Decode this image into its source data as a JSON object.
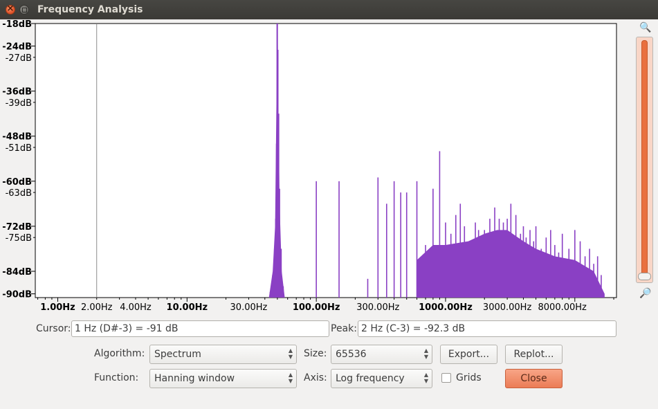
{
  "window": {
    "title": "Frequency Analysis"
  },
  "chart_data": {
    "type": "bar",
    "x_scale": "log",
    "xlim": [
      0.67,
      21000
    ],
    "ylim": [
      -91,
      -18
    ],
    "y_major_ticks": [
      "-18dB",
      "-24dB",
      "-36dB",
      "-48dB",
      "-60dB",
      "-72dB",
      "-84dB",
      "-90dB"
    ],
    "y_minor_ticks": [
      "-27dB",
      "-39dB",
      "-51dB",
      "-63dB",
      "-75dB"
    ],
    "x_ticks": [
      {
        "label": "1.00Hz",
        "value": 1,
        "major": true
      },
      {
        "label": "2.00Hz",
        "value": 2,
        "major": false
      },
      {
        "label": "4.00Hz",
        "value": 4,
        "major": false
      },
      {
        "label": "10.00Hz",
        "value": 10,
        "major": true
      },
      {
        "label": "30.00Hz",
        "value": 30,
        "major": false
      },
      {
        "label": "100.00Hz",
        "value": 100,
        "major": true
      },
      {
        "label": "300.00Hz",
        "value": 300,
        "major": false
      },
      {
        "label": "1000.00Hz",
        "value": 1000,
        "major": true
      },
      {
        "label": "3000.00Hz",
        "value": 3000,
        "major": false
      },
      {
        "label": "8000.00Hz",
        "value": 8000,
        "major": false
      }
    ],
    "cursor_line_hz": 2,
    "series": [
      {
        "color": "#8a40c4",
        "points": [
          [
            44.0,
            -89.5
          ],
          [
            46.0,
            -85
          ],
          [
            47.5,
            -78
          ],
          [
            48.5,
            -70
          ],
          [
            49.2,
            -50
          ],
          [
            49.7,
            -18
          ],
          [
            50.0,
            -18
          ],
          [
            50.5,
            -25
          ],
          [
            51.2,
            -42
          ],
          [
            52.0,
            -62
          ],
          [
            53.5,
            -78
          ],
          [
            55.5,
            -88
          ],
          [
            100,
            -60
          ],
          [
            150,
            -60
          ],
          [
            250,
            -86
          ],
          [
            300,
            -59
          ],
          [
            350,
            -66
          ],
          [
            400,
            -60
          ],
          [
            450,
            -63
          ],
          [
            500,
            -63
          ],
          [
            600,
            -60
          ],
          [
            700,
            -77
          ],
          [
            800,
            -62
          ],
          [
            900,
            -52
          ],
          [
            1000,
            -71
          ],
          [
            1100,
            -74
          ],
          [
            1200,
            -69
          ],
          [
            1300,
            -66
          ],
          [
            1400,
            -72
          ],
          [
            1500,
            -78
          ],
          [
            1600,
            -76
          ],
          [
            1700,
            -71
          ],
          [
            1800,
            -73
          ],
          [
            1900,
            -76
          ],
          [
            2000,
            -73
          ],
          [
            2200,
            -70
          ],
          [
            2400,
            -67
          ],
          [
            2600,
            -70
          ],
          [
            2800,
            -71
          ],
          [
            3000,
            -70
          ],
          [
            3200,
            -66
          ],
          [
            3500,
            -69
          ],
          [
            3800,
            -74
          ],
          [
            4000,
            -72
          ],
          [
            4200,
            -75
          ],
          [
            4500,
            -73
          ],
          [
            4800,
            -76
          ],
          [
            5000,
            -72
          ],
          [
            5500,
            -78
          ],
          [
            6000,
            -75
          ],
          [
            6500,
            -73
          ],
          [
            7000,
            -77
          ],
          [
            7500,
            -79
          ],
          [
            8000,
            -74
          ],
          [
            9000,
            -78
          ],
          [
            10000,
            -73
          ],
          [
            11000,
            -76
          ],
          [
            12000,
            -80
          ],
          [
            13000,
            -78
          ],
          [
            14000,
            -82
          ],
          [
            15000,
            -80
          ],
          [
            16000,
            -85
          ]
        ]
      }
    ]
  },
  "cursor": {
    "label": "Cursor:",
    "value": "1 Hz (D#-3) = -91 dB"
  },
  "peak": {
    "label": "Peak:",
    "value": "2 Hz (C-3) = -92.3 dB"
  },
  "algorithm": {
    "label": "Algorithm:",
    "value": "Spectrum"
  },
  "size": {
    "label": "Size:",
    "value": "65536"
  },
  "function": {
    "label": "Function:",
    "value": "Hanning window"
  },
  "axis": {
    "label": "Axis:",
    "value": "Log frequency"
  },
  "buttons": {
    "export": "Export...",
    "replot": "Replot...",
    "close": "Close"
  },
  "grids": {
    "label": "Grids",
    "checked": false
  },
  "colors": {
    "spectrum": "#8a40c4",
    "accent": "#e9703f",
    "close_button": "#eb7c56"
  },
  "icons": {
    "zoom_in": "zoom-in-icon",
    "zoom_out": "zoom-out-icon"
  }
}
